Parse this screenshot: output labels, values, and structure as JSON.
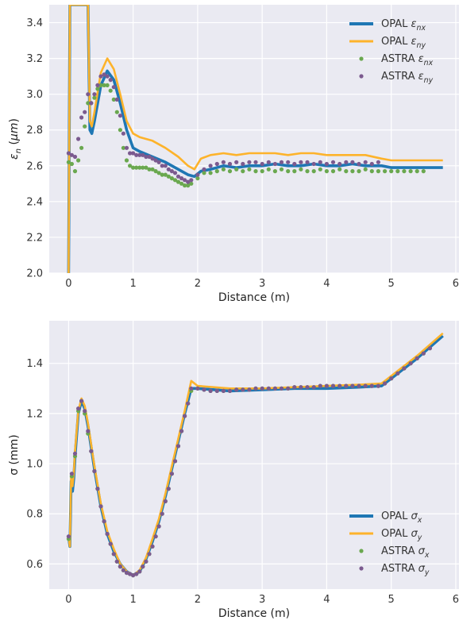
{
  "chart_data": [
    {
      "type": "line",
      "xlabel": "Distance (m)",
      "ylabel": "ε_n (μm)",
      "xlim": [
        -0.3,
        6.05
      ],
      "ylim": [
        2.0,
        3.5
      ],
      "xticks": [
        0,
        1,
        2,
        3,
        4,
        5,
        6
      ],
      "yticks": [
        2.0,
        2.2,
        2.4,
        2.6,
        2.8,
        3.0,
        3.2,
        3.4
      ],
      "xtick_labels": [
        "0",
        "1",
        "2",
        "3",
        "4",
        "5",
        "6"
      ],
      "ytick_labels": [
        "2.0",
        "2.2",
        "2.4",
        "2.6",
        "2.8",
        "3.0",
        "3.2",
        "3.4"
      ],
      "grid": true,
      "legend_position": "top-right",
      "colors": {
        "opal_x": "#1f77b4",
        "opal_y": "#fdb32b",
        "astra_x": "#6aa84f",
        "astra_y": "#7b5a8f"
      },
      "series": [
        {
          "name": "OPAL ε_nx",
          "kind": "line",
          "x": [
            0.0,
            0.02,
            0.05,
            0.3,
            0.33,
            0.36,
            0.4,
            0.5,
            0.6,
            0.7,
            0.8,
            0.9,
            1.0,
            1.1,
            1.3,
            1.5,
            1.7,
            1.85,
            1.95,
            2.05,
            2.2,
            2.4,
            2.6,
            2.8,
            3.0,
            3.2,
            3.4,
            3.6,
            3.8,
            4.0,
            4.2,
            4.4,
            4.6,
            4.85,
            5.0,
            5.4,
            5.8
          ],
          "y": [
            2.0,
            3.5,
            3.5,
            3.5,
            2.8,
            2.78,
            2.85,
            3.05,
            3.13,
            3.08,
            2.95,
            2.8,
            2.7,
            2.68,
            2.65,
            2.62,
            2.58,
            2.55,
            2.54,
            2.57,
            2.58,
            2.6,
            2.59,
            2.6,
            2.6,
            2.61,
            2.6,
            2.6,
            2.61,
            2.6,
            2.6,
            2.61,
            2.6,
            2.6,
            2.59,
            2.59,
            2.59
          ]
        },
        {
          "name": "OPAL ε_ny",
          "kind": "line",
          "x": [
            0.0,
            0.02,
            0.05,
            0.3,
            0.33,
            0.36,
            0.4,
            0.5,
            0.6,
            0.7,
            0.8,
            0.9,
            1.0,
            1.1,
            1.3,
            1.5,
            1.7,
            1.85,
            1.95,
            2.05,
            2.2,
            2.4,
            2.6,
            2.8,
            3.0,
            3.2,
            3.4,
            3.6,
            3.8,
            4.0,
            4.2,
            4.4,
            4.6,
            4.85,
            5.0,
            5.4,
            5.8
          ],
          "y": [
            2.0,
            3.5,
            3.5,
            3.5,
            2.85,
            2.82,
            2.9,
            3.12,
            3.2,
            3.14,
            3.0,
            2.85,
            2.78,
            2.76,
            2.74,
            2.7,
            2.65,
            2.6,
            2.58,
            2.64,
            2.66,
            2.67,
            2.66,
            2.67,
            2.67,
            2.67,
            2.66,
            2.67,
            2.67,
            2.66,
            2.66,
            2.66,
            2.66,
            2.64,
            2.63,
            2.63,
            2.63
          ]
        },
        {
          "name": "ASTRA ε_nx",
          "kind": "scatter",
          "x": [
            0.0,
            0.05,
            0.1,
            0.15,
            0.2,
            0.25,
            0.3,
            0.35,
            0.4,
            0.45,
            0.5,
            0.55,
            0.6,
            0.65,
            0.7,
            0.75,
            0.8,
            0.85,
            0.9,
            0.95,
            1.0,
            1.05,
            1.1,
            1.15,
            1.2,
            1.25,
            1.3,
            1.35,
            1.4,
            1.45,
            1.5,
            1.55,
            1.6,
            1.65,
            1.7,
            1.75,
            1.8,
            1.85,
            1.9,
            2.0,
            2.1,
            2.2,
            2.3,
            2.4,
            2.5,
            2.6,
            2.7,
            2.8,
            2.9,
            3.0,
            3.1,
            3.2,
            3.3,
            3.4,
            3.5,
            3.6,
            3.7,
            3.8,
            3.9,
            4.0,
            4.1,
            4.2,
            4.3,
            4.4,
            4.5,
            4.6,
            4.7,
            4.8,
            4.9,
            5.0,
            5.1,
            5.2,
            5.3,
            5.4,
            5.5
          ],
          "y": [
            2.62,
            2.61,
            2.57,
            2.63,
            2.7,
            2.82,
            2.95,
            2.95,
            2.98,
            3.03,
            3.05,
            3.05,
            3.05,
            3.02,
            2.97,
            2.9,
            2.8,
            2.7,
            2.63,
            2.6,
            2.59,
            2.59,
            2.59,
            2.59,
            2.59,
            2.58,
            2.58,
            2.57,
            2.56,
            2.55,
            2.55,
            2.54,
            2.53,
            2.52,
            2.51,
            2.5,
            2.49,
            2.49,
            2.5,
            2.53,
            2.56,
            2.56,
            2.57,
            2.58,
            2.57,
            2.58,
            2.57,
            2.58,
            2.57,
            2.57,
            2.58,
            2.57,
            2.58,
            2.57,
            2.57,
            2.58,
            2.57,
            2.57,
            2.58,
            2.57,
            2.57,
            2.58,
            2.57,
            2.57,
            2.57,
            2.58,
            2.57,
            2.57,
            2.57,
            2.57,
            2.57,
            2.57,
            2.57,
            2.57,
            2.57
          ]
        },
        {
          "name": "ASTRA ε_ny",
          "kind": "scatter",
          "x": [
            0.0,
            0.05,
            0.1,
            0.15,
            0.2,
            0.25,
            0.3,
            0.35,
            0.4,
            0.45,
            0.5,
            0.55,
            0.6,
            0.65,
            0.7,
            0.75,
            0.8,
            0.85,
            0.9,
            0.95,
            1.0,
            1.05,
            1.1,
            1.15,
            1.2,
            1.25,
            1.3,
            1.35,
            1.4,
            1.45,
            1.5,
            1.55,
            1.6,
            1.65,
            1.7,
            1.75,
            1.8,
            1.85,
            1.9,
            2.0,
            2.1,
            2.2,
            2.3,
            2.4,
            2.5,
            2.6,
            2.7,
            2.8,
            2.9,
            3.0,
            3.1,
            3.2,
            3.3,
            3.4,
            3.5,
            3.6,
            3.7,
            3.8,
            3.9,
            4.0,
            4.1,
            4.2,
            4.3,
            4.4,
            4.5,
            4.6,
            4.7,
            4.8
          ],
          "y": [
            2.67,
            2.66,
            2.65,
            2.75,
            2.87,
            2.9,
            3.0,
            2.95,
            3.0,
            3.05,
            3.1,
            3.11,
            3.1,
            3.08,
            3.04,
            2.97,
            2.88,
            2.78,
            2.7,
            2.67,
            2.67,
            2.66,
            2.66,
            2.66,
            2.65,
            2.65,
            2.64,
            2.63,
            2.62,
            2.6,
            2.6,
            2.58,
            2.57,
            2.56,
            2.54,
            2.53,
            2.52,
            2.51,
            2.52,
            2.55,
            2.58,
            2.6,
            2.61,
            2.62,
            2.61,
            2.62,
            2.61,
            2.62,
            2.62,
            2.61,
            2.62,
            2.61,
            2.62,
            2.62,
            2.61,
            2.62,
            2.62,
            2.61,
            2.62,
            2.61,
            2.62,
            2.61,
            2.62,
            2.62,
            2.61,
            2.62,
            2.61,
            2.62
          ]
        }
      ]
    },
    {
      "type": "line",
      "xlabel": "Distance (m)",
      "ylabel": "σ (mm)",
      "xlim": [
        -0.3,
        6.05
      ],
      "ylim": [
        0.5,
        1.57
      ],
      "xticks": [
        0,
        1,
        2,
        3,
        4,
        5,
        6
      ],
      "yticks": [
        0.6,
        0.8,
        1.0,
        1.2,
        1.4
      ],
      "xtick_labels": [
        "0",
        "1",
        "2",
        "3",
        "4",
        "5",
        "6"
      ],
      "ytick_labels": [
        "0.6",
        "0.8",
        "1.0",
        "1.2",
        "1.4"
      ],
      "grid": true,
      "legend_position": "bottom-right",
      "colors": {
        "opal_x": "#1f77b4",
        "opal_y": "#fdb32b",
        "astra_x": "#6aa84f",
        "astra_y": "#7b5a8f"
      },
      "series": [
        {
          "name": "OPAL σ_x",
          "kind": "line",
          "x": [
            0.0,
            0.02,
            0.04,
            0.06,
            0.08,
            0.1,
            0.15,
            0.2,
            0.25,
            0.3,
            0.4,
            0.5,
            0.6,
            0.7,
            0.8,
            0.9,
            1.0,
            1.1,
            1.2,
            1.3,
            1.4,
            1.5,
            1.6,
            1.7,
            1.8,
            1.9,
            2.0,
            2.5,
            3.0,
            3.5,
            4.0,
            4.5,
            4.85,
            5.0,
            5.4,
            5.8
          ],
          "y": [
            0.71,
            0.67,
            0.93,
            0.89,
            0.94,
            1.03,
            1.2,
            1.25,
            1.22,
            1.15,
            0.98,
            0.83,
            0.72,
            0.65,
            0.6,
            0.57,
            0.555,
            0.57,
            0.62,
            0.69,
            0.77,
            0.87,
            0.98,
            1.09,
            1.2,
            1.3,
            1.3,
            1.29,
            1.295,
            1.3,
            1.3,
            1.305,
            1.31,
            1.34,
            1.42,
            1.51
          ]
        },
        {
          "name": "OPAL σ_y",
          "kind": "line",
          "x": [
            0.0,
            0.02,
            0.04,
            0.06,
            0.08,
            0.1,
            0.15,
            0.2,
            0.25,
            0.3,
            0.4,
            0.5,
            0.6,
            0.7,
            0.8,
            0.9,
            1.0,
            1.1,
            1.2,
            1.3,
            1.4,
            1.5,
            1.6,
            1.7,
            1.8,
            1.9,
            2.0,
            2.5,
            3.0,
            3.5,
            4.0,
            4.5,
            4.85,
            5.0,
            5.4,
            5.8
          ],
          "y": [
            0.71,
            0.67,
            0.95,
            0.91,
            0.96,
            1.05,
            1.21,
            1.26,
            1.23,
            1.16,
            0.99,
            0.84,
            0.73,
            0.66,
            0.6,
            0.57,
            0.555,
            0.575,
            0.625,
            0.7,
            0.78,
            0.88,
            0.99,
            1.1,
            1.21,
            1.33,
            1.31,
            1.3,
            1.3,
            1.305,
            1.31,
            1.315,
            1.32,
            1.35,
            1.43,
            1.52
          ]
        },
        {
          "name": "ASTRA σ_x",
          "kind": "scatter",
          "x": [
            0.0,
            0.05,
            0.1,
            0.15,
            0.2,
            0.25,
            0.3,
            0.35,
            0.4,
            0.45,
            0.5,
            0.55,
            0.6,
            0.65,
            0.7,
            0.75,
            0.8,
            0.85,
            0.9,
            0.95,
            1.0,
            1.05,
            1.1,
            1.15,
            1.2,
            1.25,
            1.3,
            1.35,
            1.4,
            1.45,
            1.5,
            1.55,
            1.6,
            1.65,
            1.7,
            1.75,
            1.8,
            1.85,
            1.9,
            2.0,
            2.1,
            2.2,
            2.3,
            2.4,
            2.5,
            2.6,
            2.7,
            2.8,
            2.9,
            3.0,
            3.1,
            3.2,
            3.3,
            3.4,
            3.5,
            3.6,
            3.7,
            3.8,
            3.9,
            4.0,
            4.1,
            4.2,
            4.3,
            4.4,
            4.5,
            4.6,
            4.7,
            4.8,
            4.9,
            5.0,
            5.1,
            5.2,
            5.3,
            5.4,
            5.5,
            5.6
          ],
          "y": [
            0.7,
            0.95,
            1.03,
            1.21,
            1.25,
            1.2,
            1.12,
            1.05,
            0.97,
            0.9,
            0.83,
            0.77,
            0.72,
            0.68,
            0.64,
            0.61,
            0.59,
            0.575,
            0.565,
            0.56,
            0.555,
            0.56,
            0.57,
            0.59,
            0.61,
            0.64,
            0.67,
            0.71,
            0.75,
            0.8,
            0.85,
            0.9,
            0.96,
            1.01,
            1.07,
            1.13,
            1.19,
            1.24,
            1.29,
            1.3,
            1.295,
            1.29,
            1.29,
            1.29,
            1.29,
            1.295,
            1.295,
            1.295,
            1.3,
            1.3,
            1.3,
            1.3,
            1.3,
            1.3,
            1.305,
            1.305,
            1.305,
            1.305,
            1.31,
            1.31,
            1.31,
            1.31,
            1.31,
            1.31,
            1.31,
            1.31,
            1.31,
            1.31,
            1.32,
            1.34,
            1.36,
            1.38,
            1.4,
            1.42,
            1.44,
            1.46
          ]
        },
        {
          "name": "ASTRA σ_y",
          "kind": "scatter",
          "x": [
            0.0,
            0.05,
            0.1,
            0.15,
            0.2,
            0.25,
            0.3,
            0.35,
            0.4,
            0.45,
            0.5,
            0.55,
            0.6,
            0.65,
            0.7,
            0.75,
            0.8,
            0.85,
            0.9,
            0.95,
            1.0,
            1.05,
            1.1,
            1.15,
            1.2,
            1.25,
            1.3,
            1.35,
            1.4,
            1.45,
            1.5,
            1.55,
            1.6,
            1.65,
            1.7,
            1.75,
            1.8,
            1.85,
            1.9,
            2.0,
            2.1,
            2.2,
            2.3,
            2.4,
            2.5,
            2.6,
            2.7,
            2.8,
            2.9,
            3.0,
            3.1,
            3.2,
            3.3,
            3.4,
            3.5,
            3.6,
            3.7,
            3.8,
            3.9,
            4.0,
            4.1,
            4.2,
            4.3,
            4.4,
            4.5,
            4.6,
            4.7,
            4.8,
            4.9,
            5.0,
            5.1,
            5.2,
            5.3,
            5.4,
            5.5,
            5.6
          ],
          "y": [
            0.71,
            0.96,
            1.04,
            1.22,
            1.25,
            1.21,
            1.13,
            1.05,
            0.97,
            0.9,
            0.83,
            0.77,
            0.72,
            0.68,
            0.64,
            0.61,
            0.59,
            0.575,
            0.565,
            0.56,
            0.555,
            0.56,
            0.57,
            0.59,
            0.61,
            0.64,
            0.67,
            0.71,
            0.75,
            0.8,
            0.85,
            0.9,
            0.96,
            1.01,
            1.07,
            1.13,
            1.19,
            1.24,
            1.3,
            1.3,
            1.295,
            1.29,
            1.29,
            1.29,
            1.29,
            1.295,
            1.295,
            1.295,
            1.3,
            1.3,
            1.3,
            1.3,
            1.3,
            1.3,
            1.305,
            1.305,
            1.305,
            1.305,
            1.31,
            1.31,
            1.31,
            1.31,
            1.31,
            1.31,
            1.31,
            1.31,
            1.31,
            1.31,
            1.32,
            1.34,
            1.36,
            1.38,
            1.4,
            1.42,
            1.44,
            1.46
          ]
        }
      ]
    }
  ]
}
